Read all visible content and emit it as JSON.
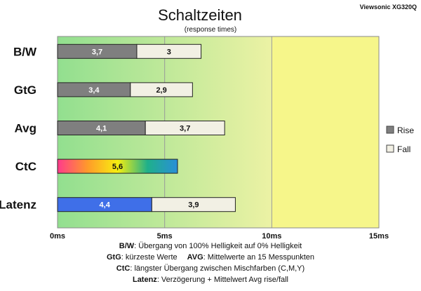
{
  "chart_data": {
    "type": "bar",
    "orientation": "horizontal",
    "stacked": true,
    "title": "Schaltzeiten",
    "subtitle": "(response times)",
    "model": "Viewsonic XG320Q",
    "categories": [
      "B/W",
      "GtG",
      "Avg",
      "CtC",
      "Latenz"
    ],
    "series": [
      {
        "name": "Rise",
        "values": [
          3.7,
          3.4,
          4.1,
          5.6,
          4.4
        ],
        "labels": [
          "3,7",
          "3,4",
          "4,1",
          "5,6",
          "4,4"
        ]
      },
      {
        "name": "Fall",
        "values": [
          3.0,
          2.9,
          3.7,
          null,
          3.9
        ],
        "labels": [
          "3",
          "2,9",
          "3,7",
          "",
          "3,9"
        ]
      }
    ],
    "xlim": [
      0,
      15
    ],
    "xticks": [
      {
        "value": 0,
        "label": "0ms"
      },
      {
        "value": 5,
        "label": "5ms"
      },
      {
        "value": 10,
        "label": "10ms"
      },
      {
        "value": 15,
        "label": "15ms"
      }
    ],
    "background_zones": [
      {
        "from": 0,
        "to": 10,
        "gradient": [
          "#92df8f",
          "#ecf2a4"
        ]
      },
      {
        "from": 10,
        "to": 15,
        "color": "#f6f68a"
      }
    ],
    "legend": {
      "position": "right",
      "entries": [
        "Rise",
        "Fall"
      ]
    },
    "colors": {
      "rise": "#7f7f7f",
      "fall": "#f2f0e4",
      "latenz": "#3f6fe8",
      "ctc_gradient": [
        "#ff3a8c",
        "#ff9a2a",
        "#f7ef10",
        "#1fb08a",
        "#2a8fd8"
      ]
    }
  },
  "notes": [
    {
      "key": "B/W",
      "text": ":  Übergang von 100% Helligkeit auf 0% Helligkeit"
    },
    {
      "key": "GtG",
      "text": ": kürzeste  Werte",
      "key2": "AVG",
      "text2": ": Mittelwerte  an 15 Messpunkten"
    },
    {
      "key": "CtC",
      "text": ": längster Übergang zwischen Mischfarben  (C,M,Y)"
    },
    {
      "key": "Latenz",
      "text": ": Verzögerung  + Mittelwert Avg rise/fall"
    }
  ]
}
